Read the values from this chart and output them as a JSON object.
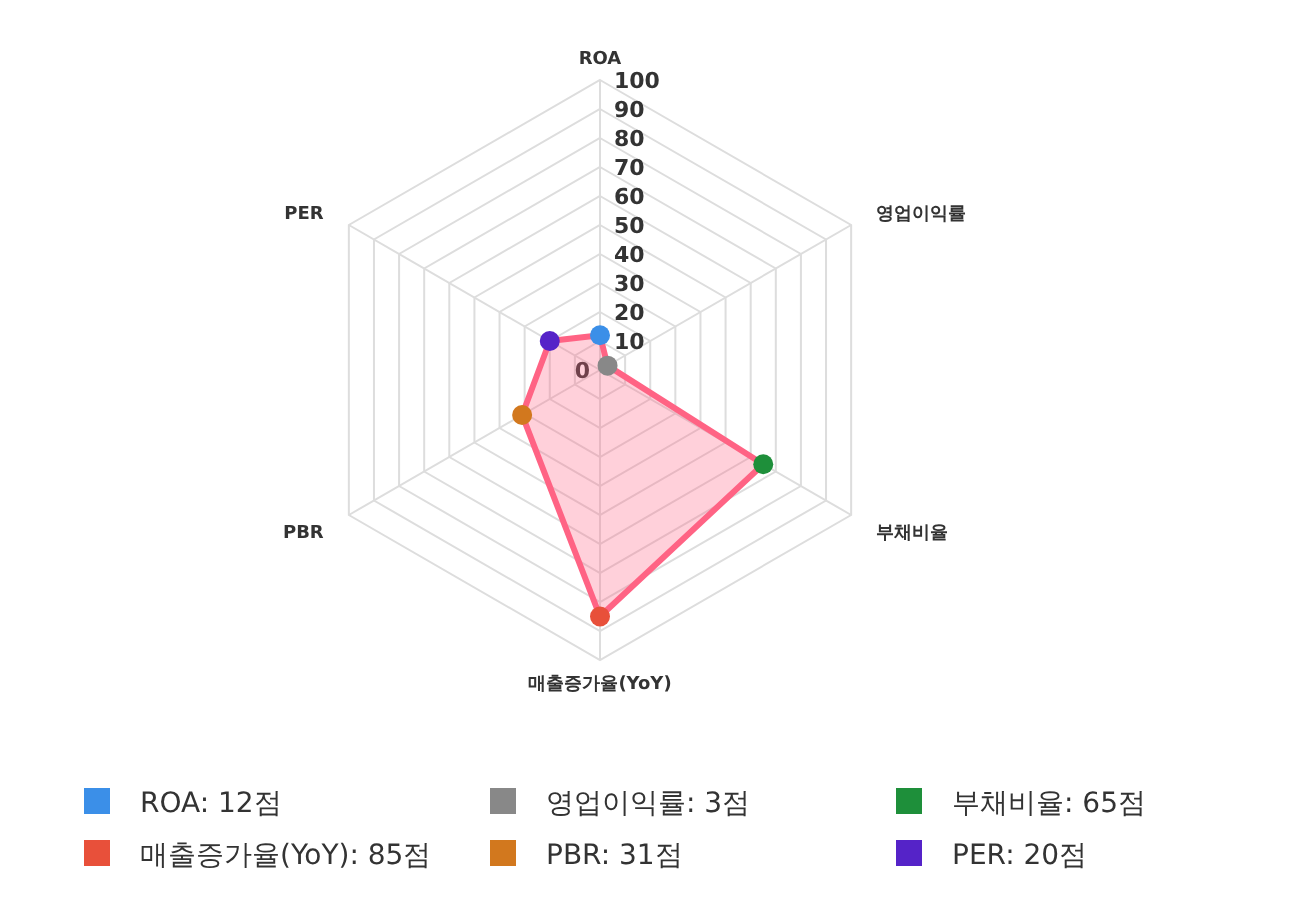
{
  "chart_data": {
    "type": "radar",
    "categories": [
      "ROA",
      "영업이익률",
      "부채비율",
      "매출증가율(YoY)",
      "PBR",
      "PER"
    ],
    "series": [
      {
        "color": "#ff6384",
        "values": [
          12,
          3,
          65,
          85,
          31,
          20
        ],
        "colors": [
          "#3b8fe8",
          "#888888",
          "#1e8f3a",
          "#e8503a",
          "#d2781e",
          "#5523c8"
        ]
      }
    ],
    "annotations": [
      "ROA: 12점",
      "영업이익률: 3점",
      "부채비율: 65점",
      "매출증가율(YoY): 85점",
      "PBR: 31점",
      "PER: 20점"
    ],
    "ylim": [
      0,
      100
    ],
    "yticks": [
      0,
      10,
      20,
      30,
      40,
      50,
      60,
      70,
      80,
      90,
      100
    ],
    "grid": true,
    "marker": "circle"
  }
}
